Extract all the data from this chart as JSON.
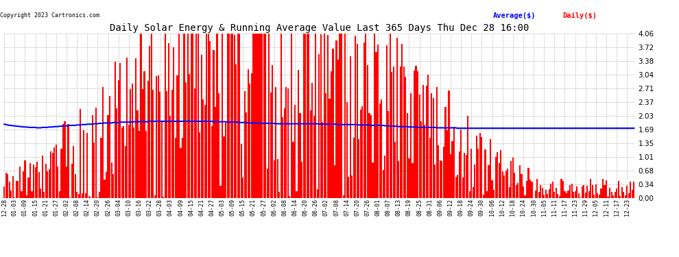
{
  "title": "Daily Solar Energy & Running Average Value Last 365 Days Thu Dec 28 16:00",
  "copyright": "Copyright 2023 Cartronics.com",
  "legend_avg": "Average($)",
  "legend_daily": "Daily($)",
  "avg_color": "blue",
  "daily_color": "red",
  "ylim": [
    0,
    4.06
  ],
  "yticks": [
    0.0,
    0.34,
    0.68,
    1.01,
    1.35,
    1.69,
    2.03,
    2.37,
    2.71,
    3.04,
    3.38,
    3.72,
    4.06
  ],
  "background_color": "#ffffff",
  "grid_color": "#bbbbbb",
  "title_fontsize": 10,
  "n_days": 365,
  "x_labels": [
    "12-28",
    "01-03",
    "01-09",
    "01-15",
    "01-21",
    "01-27",
    "02-02",
    "02-08",
    "02-14",
    "02-20",
    "02-26",
    "03-04",
    "03-10",
    "03-16",
    "03-22",
    "03-28",
    "04-03",
    "04-09",
    "04-15",
    "04-21",
    "04-27",
    "05-03",
    "05-09",
    "05-15",
    "05-21",
    "05-27",
    "06-02",
    "06-08",
    "06-14",
    "06-20",
    "06-26",
    "07-02",
    "07-08",
    "07-14",
    "07-20",
    "07-26",
    "08-01",
    "08-07",
    "08-13",
    "08-19",
    "08-25",
    "08-31",
    "09-06",
    "09-12",
    "09-18",
    "09-24",
    "09-30",
    "10-06",
    "10-12",
    "10-18",
    "10-24",
    "10-30",
    "11-05",
    "11-11",
    "11-17",
    "11-23",
    "11-29",
    "12-05",
    "12-11",
    "12-17",
    "12-23"
  ],
  "avg_line_values": [
    1.82,
    1.81,
    1.8,
    1.79,
    1.79,
    1.78,
    1.78,
    1.77,
    1.77,
    1.76,
    1.76,
    1.75,
    1.75,
    1.75,
    1.74,
    1.74,
    1.74,
    1.74,
    1.74,
    1.73,
    1.73,
    1.73,
    1.74,
    1.74,
    1.74,
    1.74,
    1.75,
    1.75,
    1.75,
    1.76,
    1.76,
    1.76,
    1.77,
    1.77,
    1.77,
    1.78,
    1.78,
    1.78,
    1.79,
    1.79,
    1.79,
    1.79,
    1.8,
    1.8,
    1.8,
    1.81,
    1.81,
    1.81,
    1.82,
    1.82,
    1.82,
    1.82,
    1.83,
    1.83,
    1.83,
    1.84,
    1.84,
    1.84,
    1.85,
    1.85,
    1.85,
    1.85,
    1.85,
    1.86,
    1.86,
    1.86,
    1.86,
    1.87,
    1.87,
    1.87,
    1.87,
    1.87,
    1.87,
    1.87,
    1.88,
    1.88,
    1.88,
    1.88,
    1.88,
    1.88,
    1.88,
    1.88,
    1.88,
    1.88,
    1.89,
    1.89,
    1.89,
    1.89,
    1.89,
    1.89,
    1.89,
    1.89,
    1.89,
    1.89,
    1.89,
    1.89,
    1.89,
    1.89,
    1.89,
    1.89,
    1.89,
    1.89,
    1.89,
    1.89,
    1.89,
    1.89,
    1.89,
    1.89,
    1.89,
    1.89,
    1.89,
    1.89,
    1.89,
    1.89,
    1.89,
    1.89,
    1.89,
    1.89,
    1.89,
    1.89,
    1.89,
    1.88,
    1.88,
    1.88,
    1.88,
    1.88,
    1.88,
    1.88,
    1.88,
    1.87,
    1.87,
    1.87,
    1.87,
    1.87,
    1.87,
    1.87,
    1.86,
    1.86,
    1.86,
    1.86,
    1.86,
    1.85,
    1.85,
    1.85,
    1.85,
    1.85,
    1.85,
    1.85,
    1.84,
    1.84,
    1.84,
    1.84,
    1.84,
    1.84,
    1.84,
    1.84,
    1.84,
    1.83,
    1.83,
    1.83,
    1.83,
    1.83,
    1.83,
    1.83,
    1.83,
    1.83,
    1.83,
    1.83,
    1.83,
    1.83,
    1.83,
    1.83,
    1.83,
    1.83,
    1.83,
    1.83,
    1.83,
    1.83,
    1.83,
    1.83,
    1.83,
    1.83,
    1.82,
    1.82,
    1.82,
    1.82,
    1.82,
    1.82,
    1.82,
    1.82,
    1.82,
    1.82,
    1.82,
    1.81,
    1.81,
    1.81,
    1.81,
    1.81,
    1.81,
    1.81,
    1.81,
    1.81,
    1.81,
    1.81,
    1.81,
    1.8,
    1.8,
    1.8,
    1.8,
    1.8,
    1.8,
    1.8,
    1.79,
    1.79,
    1.79,
    1.79,
    1.79,
    1.79,
    1.79,
    1.79,
    1.78,
    1.78,
    1.78,
    1.77,
    1.77,
    1.77,
    1.77,
    1.77,
    1.76,
    1.76,
    1.76,
    1.76,
    1.76,
    1.76,
    1.75,
    1.75,
    1.75,
    1.75,
    1.75,
    1.74,
    1.74,
    1.74,
    1.74,
    1.74,
    1.74,
    1.74,
    1.74,
    1.74,
    1.74,
    1.74,
    1.73,
    1.73,
    1.73,
    1.73,
    1.73,
    1.73,
    1.73,
    1.73,
    1.73,
    1.73,
    1.73,
    1.73,
    1.72,
    1.72,
    1.72,
    1.72,
    1.72,
    1.72,
    1.72,
    1.72,
    1.72,
    1.72,
    1.72,
    1.72,
    1.72,
    1.72,
    1.72,
    1.72,
    1.72,
    1.72,
    1.72,
    1.72,
    1.72,
    1.72,
    1.72,
    1.72,
    1.72,
    1.72,
    1.72,
    1.72,
    1.72,
    1.72,
    1.72,
    1.72,
    1.72,
    1.72,
    1.72,
    1.72,
    1.72,
    1.72,
    1.72,
    1.72,
    1.72,
    1.72,
    1.72,
    1.72,
    1.72,
    1.72,
    1.72,
    1.72,
    1.72,
    1.72,
    1.72,
    1.72,
    1.72,
    1.72,
    1.72,
    1.72,
    1.72,
    1.72,
    1.72,
    1.72,
    1.72,
    1.72,
    1.72,
    1.72,
    1.72,
    1.72,
    1.72,
    1.72,
    1.72,
    1.72,
    1.72,
    1.72,
    1.72,
    1.72,
    1.72,
    1.72,
    1.72,
    1.72,
    1.72,
    1.72,
    1.72,
    1.72,
    1.72,
    1.72,
    1.72,
    1.72,
    1.72,
    1.72,
    1.72,
    1.72,
    1.72,
    1.72,
    1.72,
    1.72,
    1.72,
    1.72,
    1.72,
    1.72,
    1.72,
    1.72,
    1.72,
    1.72,
    1.72
  ]
}
